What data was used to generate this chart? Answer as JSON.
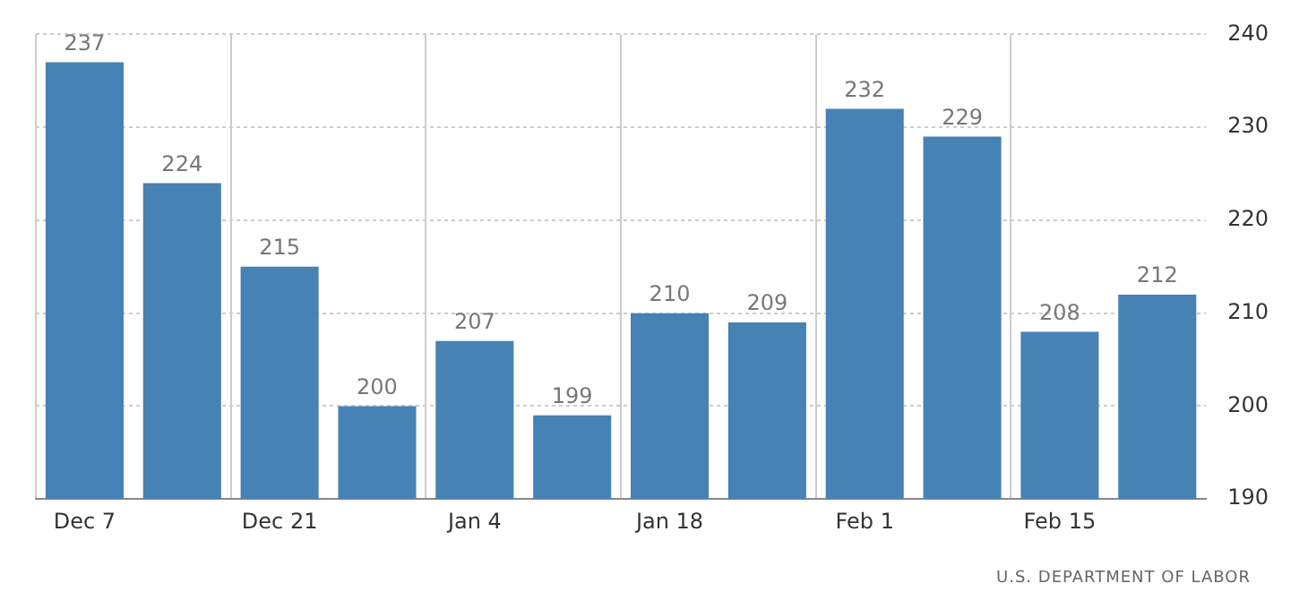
{
  "chart_data": {
    "type": "bar",
    "categories": [
      "Dec 7",
      null,
      "Dec 21",
      null,
      "Jan 4",
      null,
      "Jan 18",
      null,
      "Feb 1",
      null,
      "Feb 15",
      null
    ],
    "values": [
      237,
      224,
      215,
      200,
      207,
      199,
      210,
      209,
      232,
      229,
      208,
      212
    ],
    "color": "#4682b4",
    "ylim": [
      190,
      240
    ],
    "yticks": [
      190,
      200,
      210,
      220,
      230,
      240
    ],
    "grid": true,
    "data_labels": true,
    "annotations": [
      "U.S. DEPARTMENT OF LABOR"
    ]
  }
}
